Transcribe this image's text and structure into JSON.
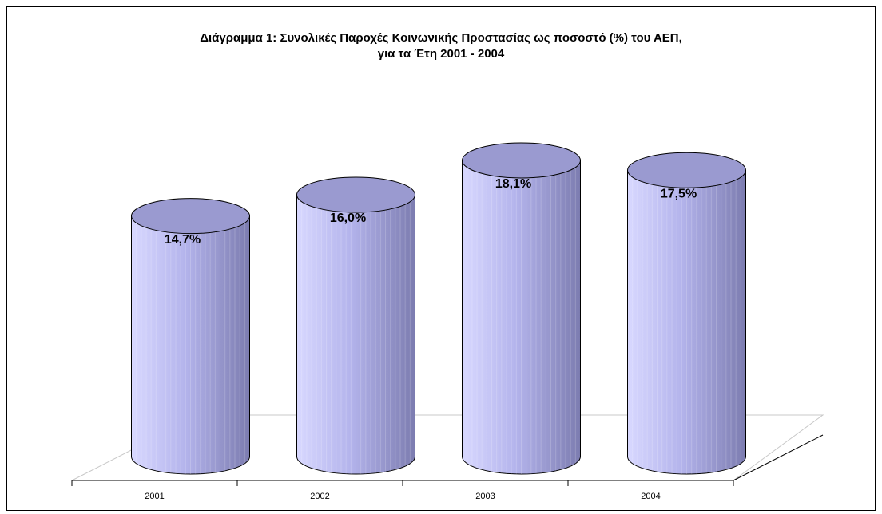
{
  "chart_data": {
    "type": "cylinder",
    "title": [
      "Διάγραμμα 1: Συνολικές Παροχές Κοινωνικής Προστασίας ως ποσοστό (%) του ΑΕΠ,",
      "για τα Έτη 2001 - 2004"
    ],
    "categories": [
      "2001",
      "2002",
      "2003",
      "2004"
    ],
    "values": [
      14.7,
      16.0,
      18.1,
      17.5
    ],
    "value_labels": [
      "14,7%",
      "16,0%",
      "18,1%",
      "17,5%"
    ],
    "color": "#b4b4ec",
    "ylim": [
      0,
      20
    ]
  }
}
